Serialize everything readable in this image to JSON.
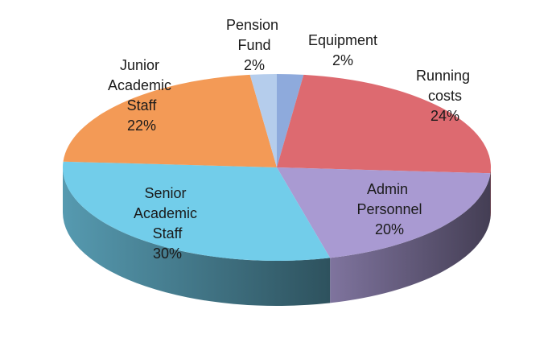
{
  "chart_data": {
    "type": "pie3d",
    "categories": [
      "Equipment",
      "Running costs",
      "Admin Personnel",
      "Senior Academic Staff",
      "Junior Academic Staff",
      "Pension Fund"
    ],
    "values": [
      2,
      24,
      20,
      30,
      22,
      2
    ],
    "value_labels": [
      "2%",
      "24%",
      "20%",
      "30%",
      "22%",
      "2%"
    ],
    "colors": [
      "#8eaadc",
      "#dd6a70",
      "#a99ad2",
      "#72cdea",
      "#f39a56",
      "#b5cdec"
    ]
  }
}
